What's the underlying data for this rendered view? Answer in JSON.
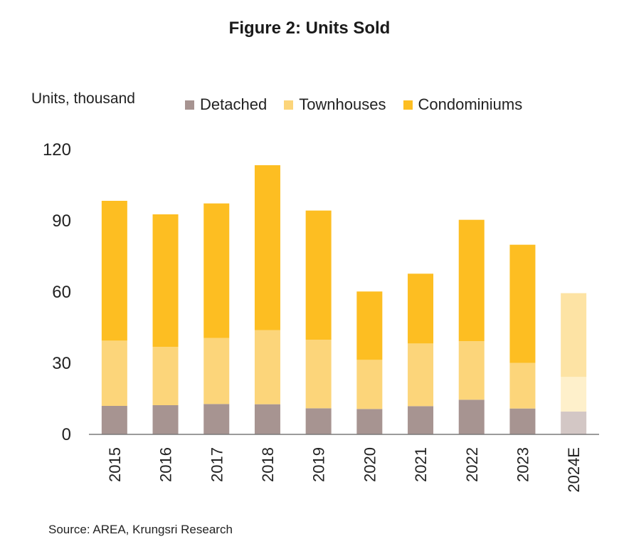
{
  "title": "Figure 2: Units Sold",
  "source": "Source: AREA, Krungsri Research",
  "chart_data": {
    "type": "bar",
    "stacked": true,
    "title": "Figure 2: Units Sold",
    "ylabel": "Units, thousand",
    "xlabel": "",
    "ylim": [
      0,
      120
    ],
    "yticks": [
      0,
      30,
      60,
      90,
      120
    ],
    "categories": [
      "2015",
      "2016",
      "2017",
      "2018",
      "2019",
      "2020",
      "2021",
      "2022",
      "2023",
      "2024E"
    ],
    "series": [
      {
        "name": "Detached",
        "color": "#A79491",
        "values": [
          12.0,
          12.3,
          12.8,
          12.7,
          11.0,
          10.7,
          11.9,
          14.6,
          10.9,
          9.6
        ]
      },
      {
        "name": "Townhouses",
        "color": "#FCD57A",
        "values": [
          27.5,
          24.6,
          27.8,
          31.2,
          28.9,
          20.7,
          26.4,
          24.7,
          19.2,
          14.6
        ]
      },
      {
        "name": "Condominiums",
        "color": "#FDBE22",
        "values": [
          58.9,
          55.8,
          56.7,
          69.5,
          54.4,
          28.8,
          29.4,
          51.1,
          49.8,
          35.3
        ]
      }
    ],
    "estimate_colors": [
      "#D3C7C5",
      "#FEF0CB",
      "#FDE3A4"
    ],
    "grid": false,
    "legend_position": "top"
  }
}
